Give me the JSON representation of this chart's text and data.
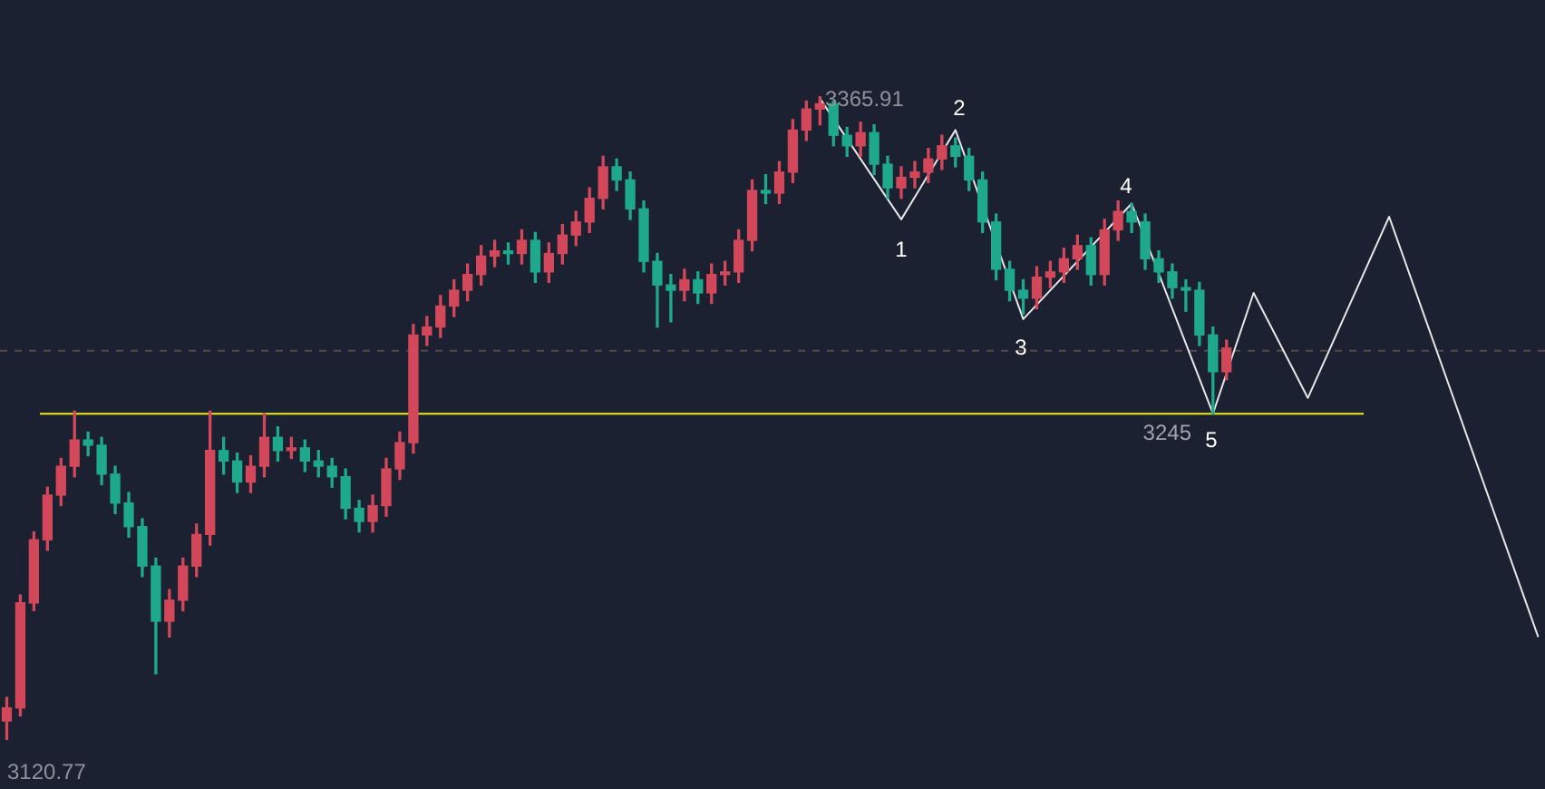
{
  "chart_data": {
    "type": "candlestick",
    "categories": [
      null,
      null,
      null,
      null,
      null,
      null,
      null,
      null,
      null,
      null,
      null,
      null,
      null,
      null,
      null,
      null,
      null,
      null,
      null,
      null,
      null,
      null,
      null,
      null,
      null,
      null,
      null,
      null,
      null,
      null,
      null,
      null,
      null,
      null,
      null,
      null,
      null,
      null,
      null,
      null,
      null,
      null,
      null,
      null,
      null,
      null,
      null,
      null,
      null,
      null,
      null,
      null,
      null,
      null,
      null,
      null,
      null,
      null,
      null,
      null,
      null,
      null,
      null,
      null,
      null,
      null,
      null,
      null,
      null,
      null,
      null,
      null,
      null,
      null,
      null,
      null,
      null,
      null,
      null,
      null,
      null,
      null,
      null,
      null,
      null,
      null,
      null,
      null,
      null,
      null,
      null,
      null,
      null,
      null,
      null,
      null,
      null,
      null,
      null,
      null,
      null,
      null,
      null,
      null,
      null,
      null,
      null,
      null,
      null,
      null,
      null,
      null,
      null,
      null
    ],
    "ohlc": [
      [
        3128,
        3137,
        3120.77,
        3133
      ],
      [
        3133,
        3176,
        3130,
        3173
      ],
      [
        3173,
        3200,
        3170,
        3197
      ],
      [
        3197,
        3217,
        3193,
        3214
      ],
      [
        3214,
        3228,
        3210,
        3225
      ],
      [
        3225,
        3246,
        3221,
        3235
      ],
      [
        3235,
        3238,
        3229,
        3233
      ],
      [
        3233,
        3236,
        3218,
        3222
      ],
      [
        3222,
        3225,
        3207,
        3211
      ],
      [
        3211,
        3215,
        3198,
        3202
      ],
      [
        3202,
        3205,
        3183,
        3187
      ],
      [
        3187,
        3190,
        3146,
        3166
      ],
      [
        3166,
        3178,
        3160,
        3174
      ],
      [
        3174,
        3190,
        3170,
        3187
      ],
      [
        3187,
        3203,
        3183,
        3199
      ],
      [
        3199,
        3246,
        3195,
        3231
      ],
      [
        3231,
        3236,
        3222,
        3227
      ],
      [
        3227,
        3230,
        3215,
        3219
      ],
      [
        3219,
        3229,
        3215,
        3225
      ],
      [
        3225,
        3245,
        3221,
        3236
      ],
      [
        3236,
        3240,
        3227,
        3231
      ],
      [
        3231,
        3236,
        3228,
        3232
      ],
      [
        3232,
        3235,
        3223,
        3227
      ],
      [
        3227,
        3231,
        3221,
        3225
      ],
      [
        3225,
        3228,
        3217,
        3221
      ],
      [
        3221,
        3224,
        3205,
        3209
      ],
      [
        3209,
        3212,
        3200,
        3204
      ],
      [
        3204,
        3214,
        3200,
        3210
      ],
      [
        3210,
        3228,
        3206,
        3224
      ],
      [
        3224,
        3238,
        3220,
        3234
      ],
      [
        3234,
        3279,
        3230,
        3275
      ],
      [
        3275,
        3282,
        3271,
        3278
      ],
      [
        3278,
        3290,
        3274,
        3286
      ],
      [
        3286,
        3296,
        3282,
        3292
      ],
      [
        3292,
        3302,
        3288,
        3298
      ],
      [
        3298,
        3309,
        3294,
        3305
      ],
      [
        3305,
        3311,
        3301,
        3307
      ],
      [
        3307,
        3310,
        3302,
        3306
      ],
      [
        3306,
        3315,
        3302,
        3311
      ],
      [
        3311,
        3314,
        3295,
        3299
      ],
      [
        3299,
        3310,
        3295,
        3306
      ],
      [
        3306,
        3317,
        3302,
        3313
      ],
      [
        3313,
        3322,
        3309,
        3318
      ],
      [
        3318,
        3331,
        3314,
        3327
      ],
      [
        3327,
        3343,
        3323,
        3339
      ],
      [
        3339,
        3342,
        3330,
        3334
      ],
      [
        3334,
        3337,
        3319,
        3323
      ],
      [
        3323,
        3326,
        3299,
        3303
      ],
      [
        3303,
        3306,
        3278,
        3294
      ],
      [
        3294,
        3298,
        3280,
        3292
      ],
      [
        3292,
        3300,
        3288,
        3296
      ],
      [
        3296,
        3299,
        3287,
        3291
      ],
      [
        3291,
        3302,
        3287,
        3298
      ],
      [
        3298,
        3303,
        3294,
        3299
      ],
      [
        3299,
        3315,
        3295,
        3311
      ],
      [
        3311,
        3334,
        3307,
        3330
      ],
      [
        3330,
        3336,
        3325,
        3329
      ],
      [
        3329,
        3341,
        3325,
        3337
      ],
      [
        3337,
        3357,
        3333,
        3353
      ],
      [
        3353,
        3364,
        3349,
        3361
      ],
      [
        3361,
        3365.91,
        3355,
        3363
      ],
      [
        3363,
        3364,
        3347,
        3351
      ],
      [
        3351,
        3354,
        3343,
        3347
      ],
      [
        3347,
        3356,
        3343,
        3352
      ],
      [
        3352,
        3355,
        3336,
        3340
      ],
      [
        3340,
        3343,
        3327,
        3331
      ],
      [
        3331,
        3339,
        3327,
        3335
      ],
      [
        3335,
        3341,
        3331,
        3337
      ],
      [
        3337,
        3346,
        3333,
        3342
      ],
      [
        3342,
        3351,
        3338,
        3347
      ],
      [
        3347,
        3350,
        3339,
        3343
      ],
      [
        3343,
        3346,
        3330,
        3334
      ],
      [
        3334,
        3337,
        3314,
        3318
      ],
      [
        3318,
        3321,
        3296,
        3300
      ],
      [
        3300,
        3303,
        3288,
        3292
      ],
      [
        3292,
        3296,
        3283,
        3289
      ],
      [
        3289,
        3301,
        3285,
        3297
      ],
      [
        3297,
        3303,
        3293,
        3299
      ],
      [
        3299,
        3308,
        3295,
        3304
      ],
      [
        3304,
        3313,
        3300,
        3309
      ],
      [
        3309,
        3312,
        3294,
        3298
      ],
      [
        3298,
        3319,
        3294,
        3315
      ],
      [
        3315,
        3326,
        3311,
        3322
      ],
      [
        3322,
        3325,
        3314,
        3318
      ],
      [
        3318,
        3321,
        3300,
        3304
      ],
      [
        3304,
        3307,
        3295,
        3299
      ],
      [
        3299,
        3302,
        3289,
        3293
      ],
      [
        3293,
        3296,
        3284,
        3292
      ],
      [
        3292,
        3295,
        3271,
        3275
      ],
      [
        3275,
        3278,
        3245,
        3261
      ],
      [
        3261,
        3273,
        3258,
        3270
      ],
      null,
      null,
      null,
      null,
      null,
      null,
      null,
      null,
      null,
      null,
      null,
      null,
      null,
      null,
      null,
      null,
      null,
      null,
      null,
      null,
      null,
      null,
      null
    ],
    "colors": [
      "#d2485a",
      "#d2485a",
      "#d2485a",
      "#d2485a",
      "#d2485a",
      "#d2485a",
      "#1fa98c",
      "#1fa98c",
      "#1fa98c",
      "#1fa98c",
      "#1fa98c",
      "#1fa98c",
      "#d2485a",
      "#d2485a",
      "#d2485a",
      "#d2485a",
      "#1fa98c",
      "#1fa98c",
      "#d2485a",
      "#d2485a",
      "#1fa98c",
      "#d2485a",
      "#1fa98c",
      "#1fa98c",
      "#1fa98c",
      "#1fa98c",
      "#1fa98c",
      "#d2485a",
      "#d2485a",
      "#d2485a",
      "#d2485a",
      "#d2485a",
      "#d2485a",
      "#d2485a",
      "#d2485a",
      "#d2485a",
      "#d2485a",
      "#1fa98c",
      "#d2485a",
      "#1fa98c",
      "#d2485a",
      "#d2485a",
      "#d2485a",
      "#d2485a",
      "#d2485a",
      "#1fa98c",
      "#1fa98c",
      "#1fa98c",
      "#1fa98c",
      "#1fa98c",
      "#d2485a",
      "#1fa98c",
      "#d2485a",
      "#d2485a",
      "#d2485a",
      "#d2485a",
      "#1fa98c",
      "#d2485a",
      "#d2485a",
      "#d2485a",
      "#d2485a",
      "#1fa98c",
      "#1fa98c",
      "#d2485a",
      "#1fa98c",
      "#1fa98c",
      "#d2485a",
      "#d2485a",
      "#d2485a",
      "#d2485a",
      "#1fa98c",
      "#1fa98c",
      "#1fa98c",
      "#1fa98c",
      "#1fa98c",
      "#1fa98c",
      "#d2485a",
      "#d2485a",
      "#d2485a",
      "#d2485a",
      "#1fa98c",
      "#d2485a",
      "#d2485a",
      "#1fa98c",
      "#1fa98c",
      "#1fa98c",
      "#1fa98c",
      "#1fa98c",
      "#1fa98c",
      "#1fa98c",
      "#d2485a",
      null,
      null,
      null,
      null,
      null,
      null,
      null,
      null,
      null,
      null,
      null,
      null,
      null,
      null,
      null,
      null,
      null,
      null,
      null,
      null,
      null,
      null,
      null
    ],
    "series": [
      {
        "type": "line",
        "color": "#e6e6e6",
        "values": [
          null,
          null,
          null,
          null,
          null,
          null,
          null,
          null,
          null,
          null,
          null,
          null,
          null,
          null,
          null,
          null,
          null,
          null,
          null,
          null,
          null,
          null,
          null,
          null,
          null,
          null,
          null,
          null,
          null,
          null,
          null,
          null,
          null,
          null,
          null,
          null,
          null,
          null,
          null,
          null,
          null,
          null,
          null,
          null,
          null,
          null,
          null,
          null,
          null,
          null,
          null,
          null,
          null,
          null,
          null,
          null,
          null,
          null,
          null,
          null,
          3365,
          null,
          null,
          null,
          null,
          null,
          3319,
          null,
          null,
          null,
          3353,
          null,
          null,
          null,
          null,
          3281,
          null,
          null,
          null,
          null,
          null,
          null,
          null,
          3325,
          null,
          null,
          null,
          null,
          null,
          3245,
          null,
          null,
          3291,
          null,
          null,
          null,
          3251,
          null,
          null,
          null,
          null,
          null,
          3320,
          null,
          null,
          null,
          null,
          null,
          null,
          null,
          null,
          null,
          null,
          3160
        ]
      }
    ],
    "ref_lines": [
      {
        "axis": "y",
        "value": 3245,
        "label": "3245",
        "color": "#f0f000",
        "line_style": "solid"
      },
      {
        "axis": "y",
        "value": 3269,
        "color": "#5e4550",
        "line_style": "dashed"
      }
    ],
    "annotations": [
      "3365.91",
      "3120.77",
      "1",
      "2",
      "3",
      "4",
      "5"
    ],
    "legend": false,
    "tick_labels": false
  }
}
